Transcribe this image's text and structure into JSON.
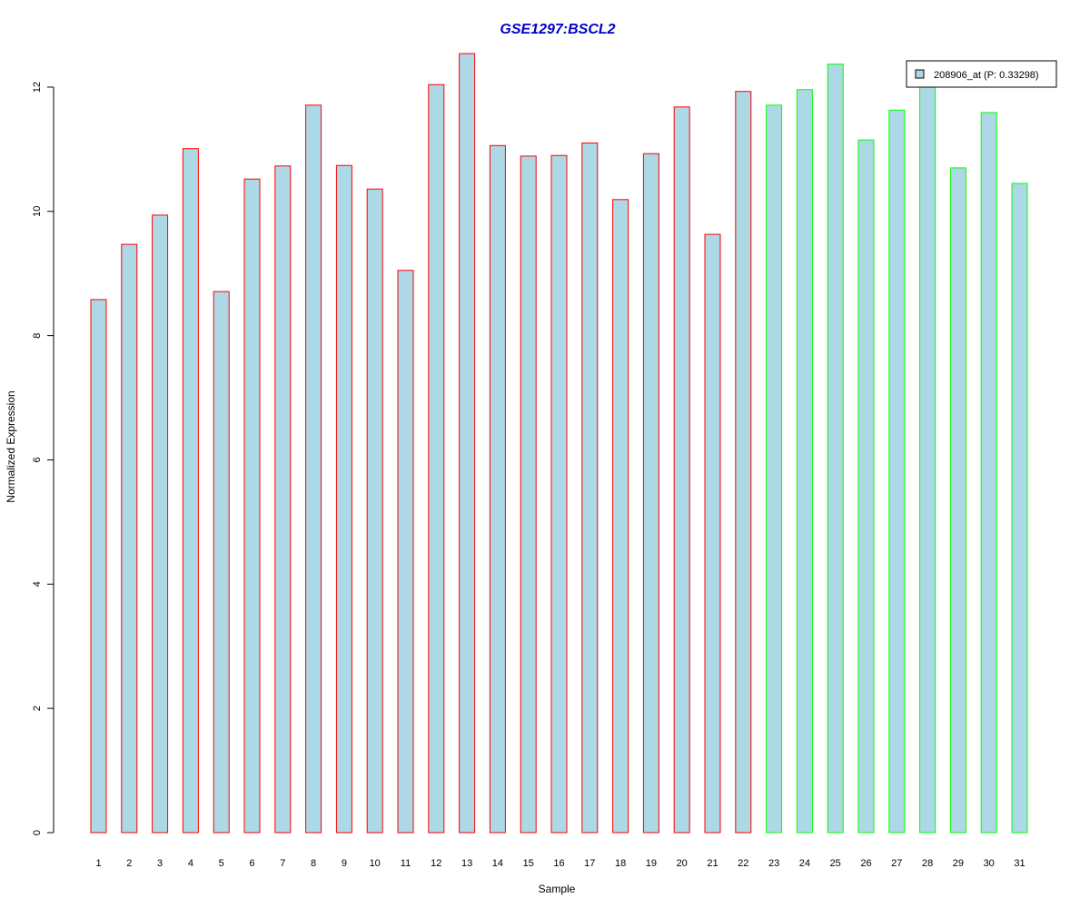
{
  "chart_data": {
    "type": "bar",
    "title": "GSE1297:BSCL2",
    "xlabel": "Sample",
    "ylabel": "Normalized Expression",
    "categories": [
      "1",
      "2",
      "3",
      "4",
      "5",
      "6",
      "7",
      "8",
      "9",
      "10",
      "11",
      "12",
      "13",
      "14",
      "15",
      "16",
      "17",
      "18",
      "19",
      "20",
      "21",
      "22",
      "23",
      "24",
      "25",
      "26",
      "27",
      "28",
      "29",
      "30",
      "31"
    ],
    "series": [
      {
        "name": "208906_at (P: 0.33298)",
        "values": [
          8.58,
          9.47,
          9.94,
          11.01,
          8.71,
          10.52,
          10.73,
          11.71,
          10.74,
          10.36,
          9.05,
          12.04,
          12.54,
          11.06,
          10.89,
          10.9,
          11.1,
          10.19,
          10.93,
          11.68,
          9.63,
          11.93,
          11.71,
          11.96,
          12.37,
          11.15,
          11.63,
          12.04,
          10.7,
          11.59,
          10.45
        ],
        "fill": "#ADD8E6"
      }
    ],
    "groups": [
      {
        "from": 1,
        "to": 22,
        "border": "#FF0000"
      },
      {
        "from": 23,
        "to": 31,
        "border": "#00FF00"
      }
    ],
    "ylim": [
      0,
      12.54
    ],
    "yticks": [
      0,
      2,
      4,
      6,
      8,
      10,
      12
    ],
    "grid": false,
    "legend_position": "top-right",
    "colors": {
      "title": "#0000CC",
      "axis": "#000000"
    }
  }
}
